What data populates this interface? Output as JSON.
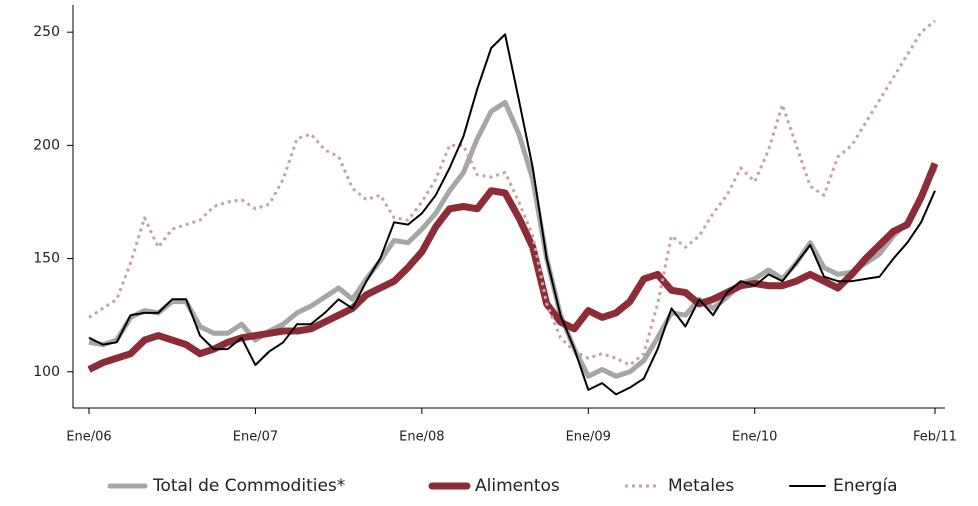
{
  "chart_data": {
    "type": "line",
    "categories": [
      "Ene/06",
      null,
      null,
      null,
      null,
      null,
      null,
      null,
      null,
      null,
      null,
      null,
      "Ene/07",
      null,
      null,
      null,
      null,
      null,
      null,
      null,
      null,
      null,
      null,
      null,
      "Ene/08",
      null,
      null,
      null,
      null,
      null,
      null,
      null,
      null,
      null,
      null,
      null,
      "Ene/09",
      null,
      null,
      null,
      null,
      null,
      null,
      null,
      null,
      null,
      null,
      null,
      "Ene/10",
      null,
      null,
      null,
      null,
      null,
      null,
      null,
      null,
      null,
      null,
      null,
      null,
      "Feb/11"
    ],
    "ylim": [
      84,
      262
    ],
    "yticks": [
      100,
      150,
      200,
      250
    ],
    "series": [
      {
        "name": "Total de Commodities*",
        "color": "#a6a6a6",
        "width": 5,
        "style": "solid",
        "values": [
          113,
          112,
          114,
          124,
          127,
          126,
          131,
          131,
          120,
          117,
          117,
          121,
          114,
          118,
          121,
          126,
          129,
          133,
          137,
          132,
          141,
          149,
          158,
          157,
          163,
          170,
          180,
          188,
          203,
          215,
          219,
          205,
          185,
          150,
          125,
          110,
          98,
          101,
          98,
          100,
          105,
          115,
          126,
          125,
          132,
          128,
          133,
          139,
          141,
          145,
          141,
          148,
          157,
          146,
          143,
          144,
          148,
          152,
          160,
          166,
          178,
          190
        ]
      },
      {
        "name": "Alimentos",
        "color": "#8b2c36",
        "width": 7,
        "style": "solid",
        "values": [
          101,
          104,
          106,
          108,
          114,
          116,
          114,
          112,
          108,
          110,
          113,
          115,
          116,
          117,
          118,
          118,
          119,
          122,
          125,
          128,
          134,
          137,
          140,
          146,
          153,
          164,
          172,
          173,
          172,
          180,
          179,
          168,
          155,
          130,
          122,
          119,
          127,
          124,
          126,
          131,
          141,
          143,
          136,
          135,
          130,
          132,
          135,
          138,
          139,
          138,
          138,
          140,
          143,
          140,
          137,
          143,
          150,
          156,
          162,
          165,
          177,
          192
        ]
      },
      {
        "name": "Metales",
        "color": "#c9a39f",
        "width": 3,
        "style": "dotted",
        "values": [
          124,
          128,
          132,
          148,
          168,
          155,
          163,
          165,
          167,
          173,
          175,
          176,
          172,
          174,
          185,
          203,
          205,
          198,
          195,
          181,
          176,
          178,
          168,
          167,
          175,
          185,
          200,
          200,
          187,
          186,
          188,
          175,
          160,
          130,
          115,
          109,
          106,
          108,
          106,
          103,
          108,
          130,
          160,
          155,
          160,
          170,
          178,
          190,
          184,
          198,
          218,
          200,
          182,
          178,
          195,
          200,
          210,
          220,
          230,
          240,
          250,
          255
        ]
      },
      {
        "name": "Energía",
        "color": "#000000",
        "width": 2,
        "style": "solid",
        "values": [
          115,
          112,
          113,
          125,
          126,
          126,
          132,
          132,
          116,
          110,
          110,
          115,
          103,
          109,
          113,
          121,
          121,
          126,
          132,
          128,
          140,
          150,
          166,
          165,
          170,
          178,
          190,
          204,
          225,
          243,
          249,
          220,
          190,
          150,
          125,
          110,
          92,
          95,
          90,
          93,
          97,
          110,
          128,
          120,
          132,
          125,
          135,
          140,
          138,
          143,
          140,
          148,
          156,
          142,
          140,
          140,
          141,
          142,
          150,
          157,
          166,
          180
        ]
      }
    ]
  }
}
